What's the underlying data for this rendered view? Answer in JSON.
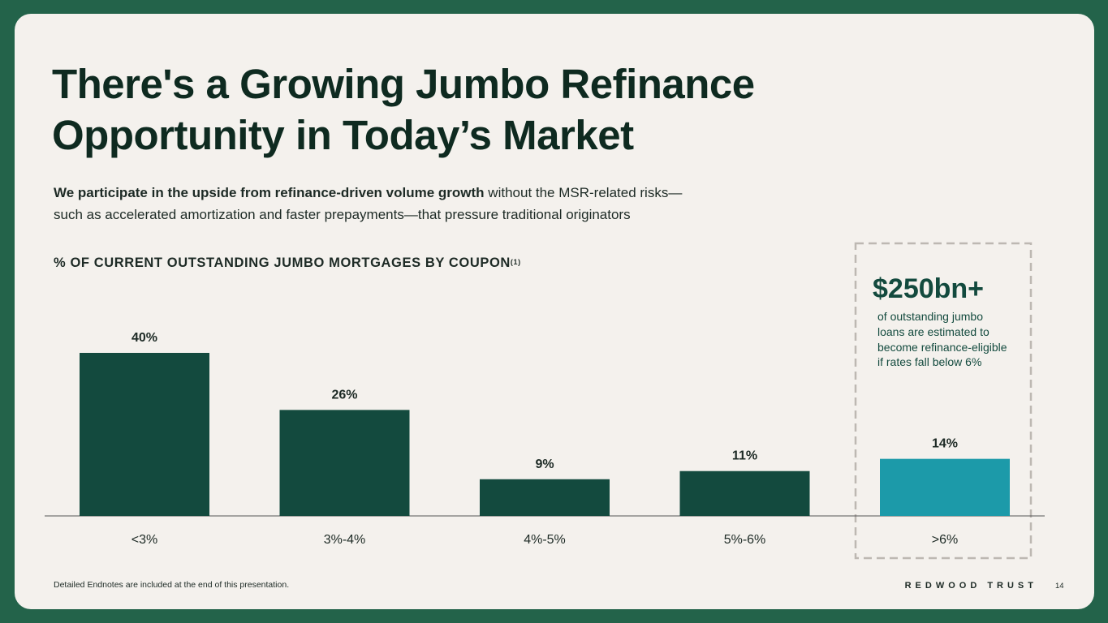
{
  "slide": {
    "title_lines": [
      "There's a Growing Jumbo Refinance",
      "Opportunity in Today’s Market"
    ],
    "subtitle": {
      "bold": "We participate in the upside from refinance-driven volume growth",
      "lines": [
        "without the MSR-related risks—",
        "such as accelerated amortization and faster prepayments—that pressure traditional originators"
      ]
    },
    "callout": {
      "headline": "$250bn+",
      "lines": [
        "of outstanding jumbo",
        "loans are estimated to",
        "become refinance-eligible",
        "if rates fall below 6%"
      ]
    },
    "footnote": "Detailed Endnotes are included at the end of this presentation.",
    "brand": "REDWOOD TRUST",
    "page_number": "14"
  },
  "chart_data": {
    "type": "bar",
    "title": "% OF CURRENT OUTSTANDING JUMBO MORTGAGES BY COUPON",
    "title_note": "(1)",
    "categories": [
      "<3%",
      "3%-4%",
      "4%-5%",
      "5%-6%",
      ">6%"
    ],
    "values": [
      40,
      26,
      9,
      11,
      14
    ],
    "value_labels": [
      "40%",
      "26%",
      "9%",
      "11%",
      "14%"
    ],
    "colors": [
      "#134a3e",
      "#134a3e",
      "#134a3e",
      "#134a3e",
      "#1c9aa9"
    ]
  }
}
